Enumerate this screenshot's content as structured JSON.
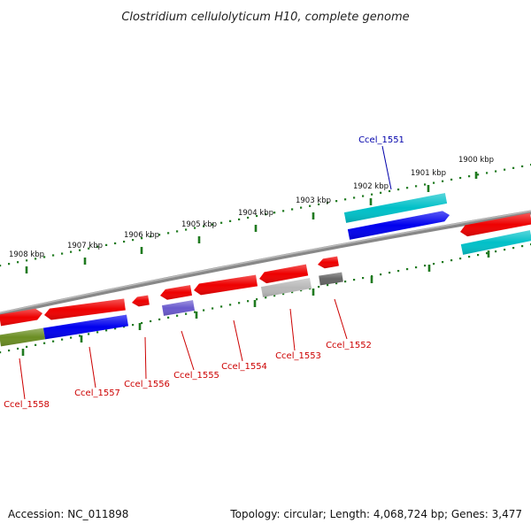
{
  "title": "Clostridium cellulolyticum H10, complete genome",
  "footer": {
    "accession": "Accession: NC_011898",
    "topology": "Topology: circular; Length: 4,068,724 bp; Genes: 3,477"
  },
  "colors": {
    "backbone": "#888888",
    "tick_dots": "#1f7a1f",
    "label_red": "#cc0000",
    "label_blue": "#0000aa",
    "cds_red": "#ee0000",
    "cds_blue": "#0000ee",
    "cds_cyan": "#00c0c8",
    "cds_olive": "#6b8e23",
    "cds_slate": "#6a5acd",
    "cds_gray": "#b8b8b8",
    "cds_darkgray": "#666666"
  },
  "ticks": [
    {
      "label": "1900 kbp"
    },
    {
      "label": "1901 kbp"
    },
    {
      "label": "1902 kbp"
    },
    {
      "label": "1903 kbp"
    },
    {
      "label": "1904 kbp"
    },
    {
      "label": "1905 kbp"
    },
    {
      "label": "1906 kbp"
    },
    {
      "label": "1907 kbp"
    },
    {
      "label": "1908 kbp"
    }
  ],
  "gene_labels": [
    {
      "label": "Ccel_1551",
      "color": "#0000aa"
    },
    {
      "label": "Ccel_1552",
      "color": "#cc0000"
    },
    {
      "label": "Ccel_1553",
      "color": "#cc0000"
    },
    {
      "label": "Ccel_1554",
      "color": "#cc0000"
    },
    {
      "label": "Ccel_1555",
      "color": "#cc0000"
    },
    {
      "label": "Ccel_1556",
      "color": "#cc0000"
    },
    {
      "label": "Ccel_1557",
      "color": "#cc0000"
    },
    {
      "label": "Ccel_1558",
      "color": "#cc0000"
    }
  ]
}
